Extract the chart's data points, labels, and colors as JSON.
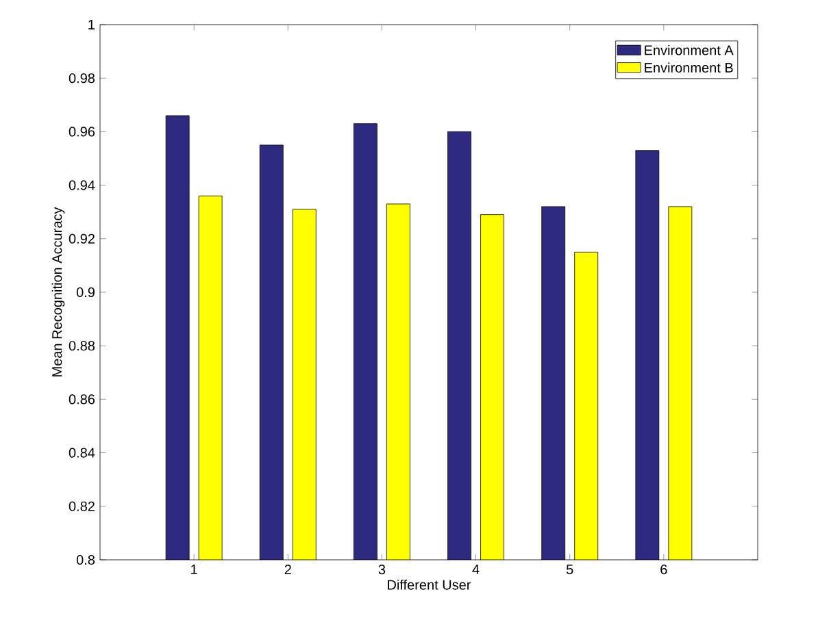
{
  "chart_data": {
    "type": "bar",
    "xlabel": "Different User",
    "ylabel": "Mean Recognition Accuracy",
    "categories": [
      "1",
      "2",
      "3",
      "4",
      "5",
      "6"
    ],
    "series": [
      {
        "name": "Environment A",
        "color": "#2e2a80",
        "values": [
          0.966,
          0.955,
          0.963,
          0.96,
          0.932,
          0.953
        ]
      },
      {
        "name": "Environment B",
        "color": "#ffff00",
        "values": [
          0.936,
          0.931,
          0.933,
          0.929,
          0.915,
          0.932
        ]
      }
    ],
    "ylim": [
      0.8,
      1
    ],
    "yticks": [
      0.8,
      0.82,
      0.84,
      0.86,
      0.88,
      0.9,
      0.92,
      0.94,
      0.96,
      0.98,
      1
    ],
    "legend": "top right",
    "grid": false
  }
}
